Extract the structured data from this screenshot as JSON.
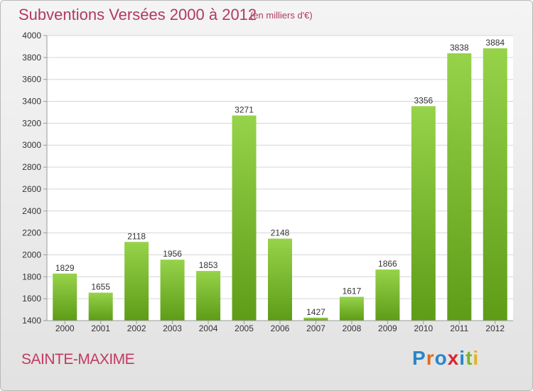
{
  "chart_data": {
    "type": "bar",
    "title": "Subventions Versées 2000 à 2012",
    "subtitle": "(en milliers d'€)",
    "categories": [
      "2000",
      "2001",
      "2002",
      "2003",
      "2004",
      "2005",
      "2006",
      "2007",
      "2008",
      "2009",
      "2010",
      "2011",
      "2012"
    ],
    "values": [
      1829,
      1655,
      2118,
      1956,
      1853,
      3271,
      2148,
      1427,
      1617,
      1866,
      3356,
      3838,
      3884
    ],
    "ylim": [
      1400,
      4000
    ],
    "yticks": [
      1400,
      1600,
      1800,
      2000,
      2200,
      2400,
      2600,
      2800,
      3000,
      3200,
      3400,
      3600,
      3800,
      4000
    ],
    "grid": true,
    "bar_color_top": "#96d34a",
    "bar_color_bottom": "#5e9c18",
    "xlabel": "",
    "ylabel": ""
  },
  "commune": "SAINTE-MAXIME",
  "logo": {
    "letters": [
      "P",
      "r",
      "o",
      "x",
      "i",
      "t",
      "i"
    ]
  }
}
